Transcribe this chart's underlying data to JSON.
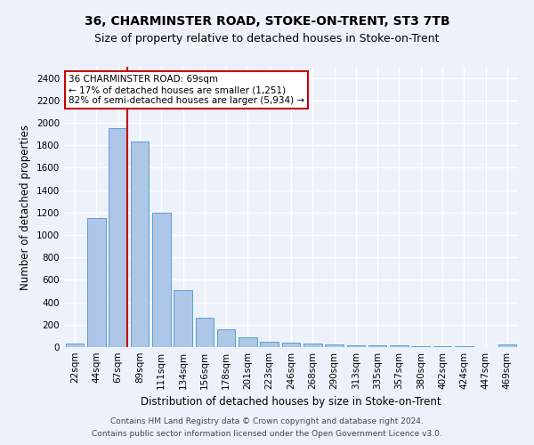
{
  "title": "36, CHARMINSTER ROAD, STOKE-ON-TRENT, ST3 7TB",
  "subtitle": "Size of property relative to detached houses in Stoke-on-Trent",
  "xlabel": "Distribution of detached houses by size in Stoke-on-Trent",
  "ylabel": "Number of detached properties",
  "footnote1": "Contains HM Land Registry data © Crown copyright and database right 2024.",
  "footnote2": "Contains public sector information licensed under the Open Government Licence v3.0.",
  "bar_labels": [
    "22sqm",
    "44sqm",
    "67sqm",
    "89sqm",
    "111sqm",
    "134sqm",
    "156sqm",
    "178sqm",
    "201sqm",
    "223sqm",
    "246sqm",
    "268sqm",
    "290sqm",
    "313sqm",
    "335sqm",
    "357sqm",
    "380sqm",
    "402sqm",
    "424sqm",
    "447sqm",
    "469sqm"
  ],
  "bar_values": [
    30,
    1150,
    1950,
    1830,
    1200,
    510,
    265,
    155,
    85,
    45,
    40,
    30,
    20,
    15,
    15,
    12,
    8,
    5,
    5,
    3,
    20
  ],
  "bar_color": "#aec6e8",
  "bar_edge_color": "#5a9fd4",
  "property_bin_index": 2,
  "vline_color": "#cc0000",
  "annotation_text": "36 CHARMINSTER ROAD: 69sqm\n← 17% of detached houses are smaller (1,251)\n82% of semi-detached houses are larger (5,934) →",
  "annotation_box_color": "#ffffff",
  "annotation_box_edge": "#cc0000",
  "ylim": [
    0,
    2500
  ],
  "yticks": [
    0,
    200,
    400,
    600,
    800,
    1000,
    1200,
    1400,
    1600,
    1800,
    2000,
    2200,
    2400
  ],
  "background_color": "#edf2fa",
  "grid_color": "#ffffff",
  "title_fontsize": 10,
  "subtitle_fontsize": 9,
  "axis_label_fontsize": 8.5,
  "tick_fontsize": 7.5,
  "footnote_fontsize": 6.5
}
